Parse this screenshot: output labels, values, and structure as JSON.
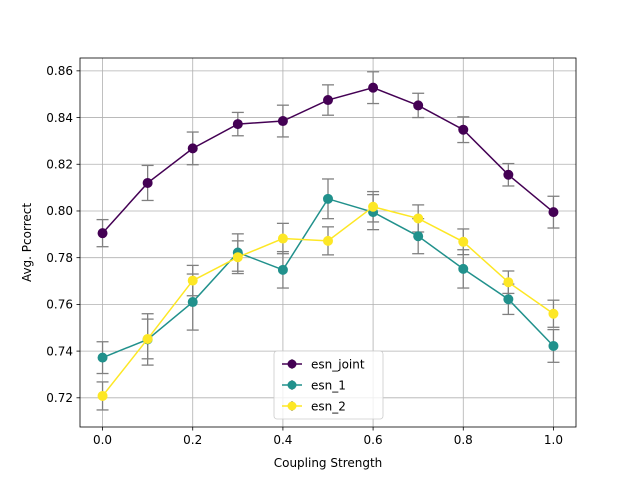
{
  "chart_data": {
    "type": "line",
    "title": "",
    "xlabel": "Coupling Strength",
    "ylabel": "Avg. Pcorrect",
    "xlim": [
      -0.05,
      1.05
    ],
    "ylim": [
      0.7075,
      0.8655
    ],
    "x": [
      0.0,
      0.1,
      0.2,
      0.3,
      0.4,
      0.5,
      0.6,
      0.7,
      0.8,
      0.9,
      1.0
    ],
    "x_ticks": [
      0.0,
      0.2,
      0.4,
      0.6,
      0.8,
      1.0
    ],
    "x_tick_labels": [
      "0.0",
      "0.2",
      "0.4",
      "0.6",
      "0.8",
      "1.0"
    ],
    "y_ticks": [
      0.72,
      0.74,
      0.76,
      0.78,
      0.8,
      0.82,
      0.84,
      0.86
    ],
    "y_tick_labels": [
      "0.72",
      "0.74",
      "0.76",
      "0.78",
      "0.80",
      "0.82",
      "0.84",
      "0.86"
    ],
    "grid": true,
    "legend_position": "bottom-center",
    "error_bar_color": "#808080",
    "series": [
      {
        "name": "esn_joint",
        "color": "#440154",
        "values": [
          0.7905,
          0.812,
          0.8268,
          0.8372,
          0.8385,
          0.8475,
          0.8528,
          0.8452,
          0.8348,
          0.8155,
          0.7995
        ],
        "errors": [
          0.0058,
          0.0075,
          0.007,
          0.005,
          0.0068,
          0.0065,
          0.0068,
          0.0052,
          0.0055,
          0.0048,
          0.0068
        ]
      },
      {
        "name": "esn_1",
        "color": "#21918c",
        "values": [
          0.7372,
          0.745,
          0.761,
          0.7822,
          0.7748,
          0.8052,
          0.7995,
          0.7892,
          0.7752,
          0.7622,
          0.7422
        ],
        "errors": [
          0.0068,
          0.011,
          0.012,
          0.008,
          0.0078,
          0.0085,
          0.0075,
          0.0075,
          0.0082,
          0.0065,
          0.007
        ]
      },
      {
        "name": "esn_2",
        "color": "#fde725",
        "values": [
          0.7208,
          0.7452,
          0.7702,
          0.7802,
          0.7882,
          0.7872,
          0.8018,
          0.7968,
          0.7868,
          0.7695,
          0.756
        ],
        "errors": [
          0.006,
          0.0085,
          0.0065,
          0.007,
          0.0065,
          0.006,
          0.0065,
          0.0058,
          0.0055,
          0.0048,
          0.0058
        ]
      }
    ]
  }
}
